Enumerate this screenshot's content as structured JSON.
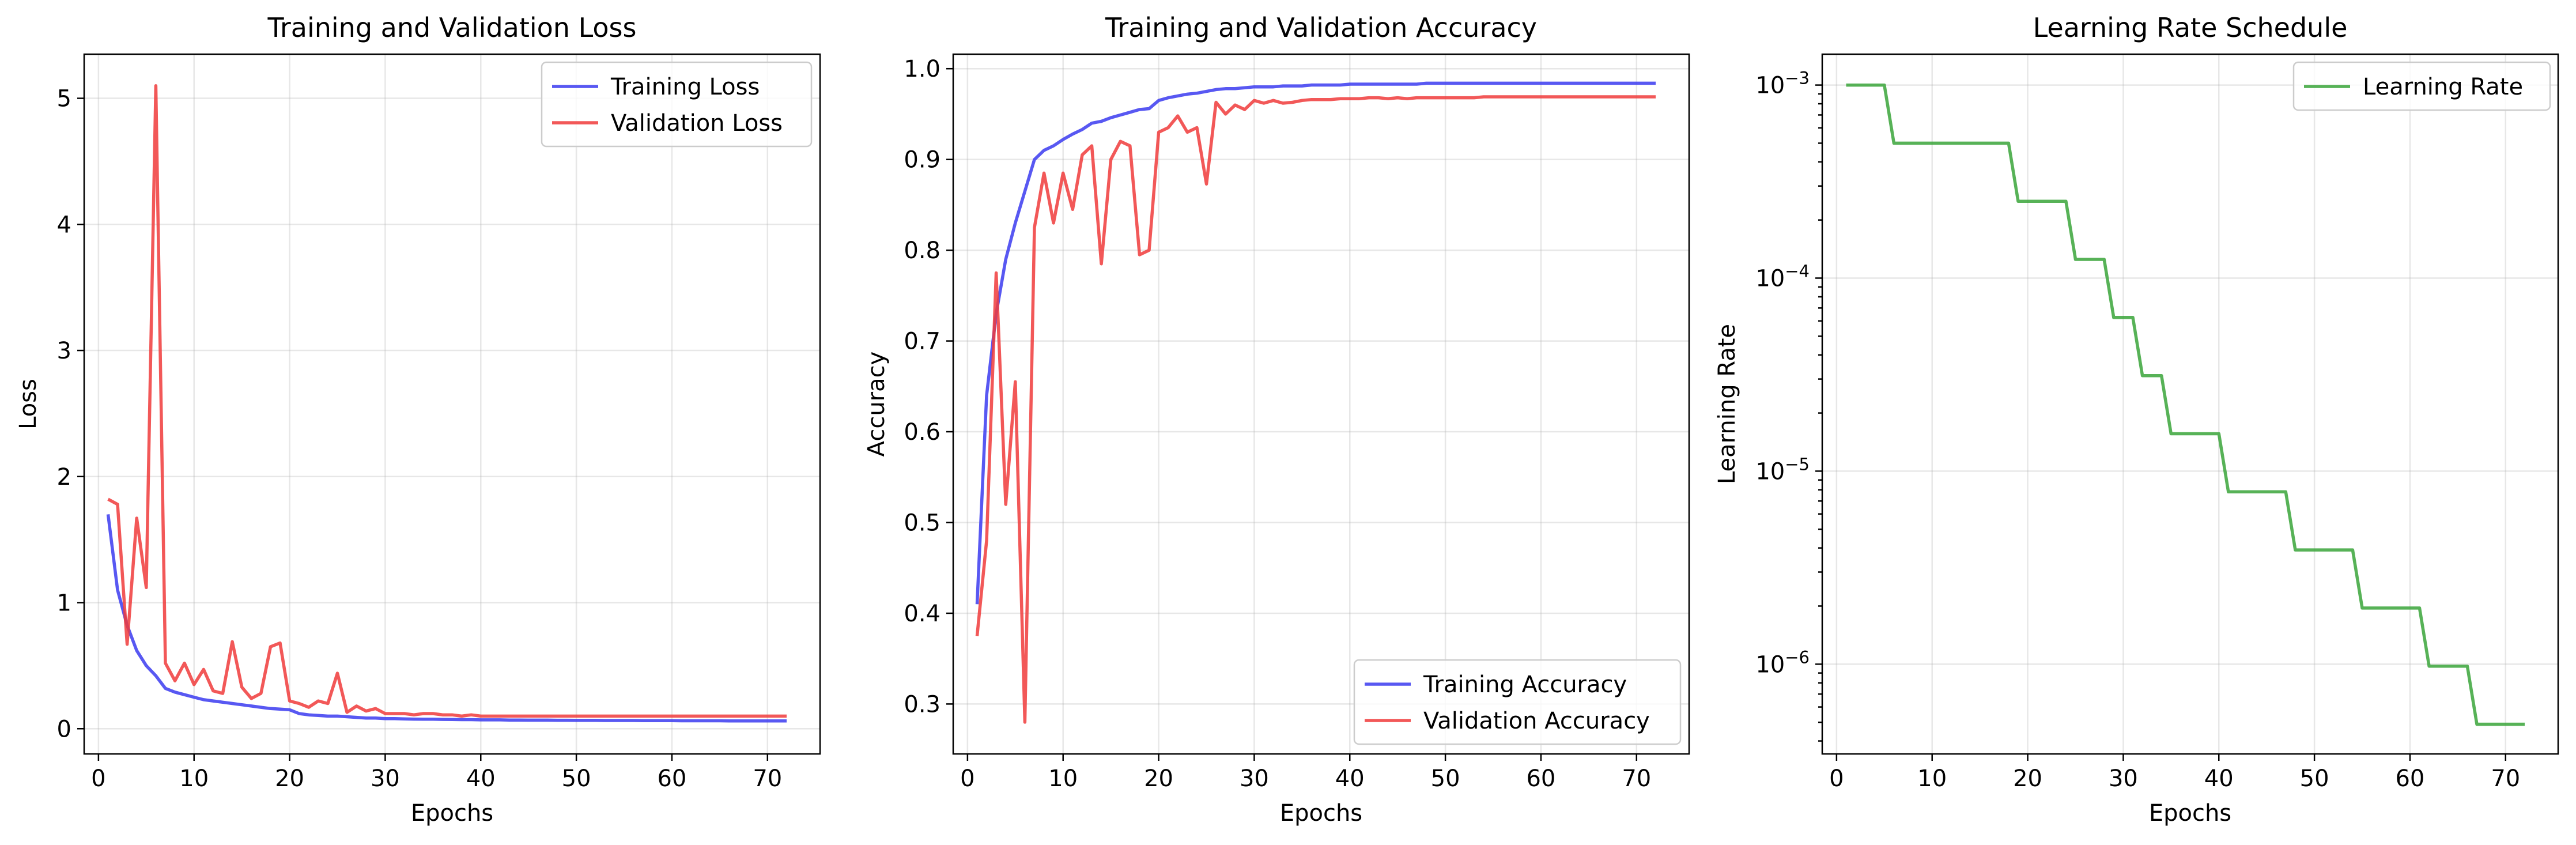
{
  "chart_data": [
    {
      "type": "line",
      "title": "Training and Validation Loss",
      "xlabel": "Epochs",
      "ylabel": "Loss",
      "xlim": [
        -1.5,
        75.5
      ],
      "ylim": [
        -0.2,
        5.35
      ],
      "xticks": [
        0,
        10,
        20,
        30,
        40,
        50,
        60,
        70
      ],
      "yticks": [
        0,
        1,
        2,
        3,
        4,
        5
      ],
      "grid": true,
      "legend_position": "top-right",
      "x": [
        1,
        2,
        3,
        4,
        5,
        6,
        7,
        8,
        9,
        10,
        11,
        12,
        13,
        14,
        15,
        16,
        17,
        18,
        19,
        20,
        21,
        22,
        23,
        24,
        25,
        26,
        27,
        28,
        29,
        30,
        31,
        32,
        33,
        34,
        35,
        36,
        37,
        38,
        39,
        40,
        41,
        42,
        43,
        44,
        45,
        46,
        47,
        48,
        49,
        50,
        51,
        52,
        53,
        54,
        55,
        56,
        57,
        58,
        59,
        60,
        61,
        62,
        63,
        64,
        65,
        66,
        67,
        68,
        69,
        70,
        71,
        72
      ],
      "series": [
        {
          "name": "Training Loss",
          "color": "#3b3bf0",
          "values": [
            1.7,
            1.1,
            0.82,
            0.62,
            0.5,
            0.42,
            0.32,
            0.29,
            0.27,
            0.25,
            0.23,
            0.22,
            0.21,
            0.2,
            0.19,
            0.18,
            0.17,
            0.16,
            0.155,
            0.15,
            0.12,
            0.11,
            0.105,
            0.1,
            0.1,
            0.095,
            0.09,
            0.085,
            0.085,
            0.08,
            0.08,
            0.078,
            0.076,
            0.075,
            0.075,
            0.074,
            0.073,
            0.072,
            0.072,
            0.07,
            0.07,
            0.07,
            0.069,
            0.069,
            0.068,
            0.068,
            0.068,
            0.067,
            0.067,
            0.066,
            0.066,
            0.066,
            0.065,
            0.065,
            0.065,
            0.065,
            0.064,
            0.064,
            0.064,
            0.064,
            0.063,
            0.063,
            0.063,
            0.063,
            0.063,
            0.062,
            0.062,
            0.062,
            0.062,
            0.062,
            0.062,
            0.062
          ]
        },
        {
          "name": "Validation Loss",
          "color": "#f03b3b",
          "values": [
            1.82,
            1.78,
            0.67,
            1.67,
            1.12,
            5.1,
            0.52,
            0.38,
            0.52,
            0.35,
            0.47,
            0.3,
            0.28,
            0.69,
            0.33,
            0.24,
            0.28,
            0.65,
            0.68,
            0.22,
            0.2,
            0.17,
            0.22,
            0.2,
            0.44,
            0.13,
            0.18,
            0.14,
            0.16,
            0.12,
            0.12,
            0.12,
            0.11,
            0.12,
            0.12,
            0.11,
            0.11,
            0.1,
            0.11,
            0.1,
            0.1,
            0.1,
            0.1,
            0.1,
            0.1,
            0.1,
            0.1,
            0.1,
            0.1,
            0.1,
            0.1,
            0.1,
            0.1,
            0.1,
            0.1,
            0.1,
            0.1,
            0.1,
            0.1,
            0.1,
            0.1,
            0.1,
            0.1,
            0.1,
            0.1,
            0.1,
            0.1,
            0.1,
            0.1,
            0.1,
            0.1,
            0.1
          ]
        }
      ]
    },
    {
      "type": "line",
      "title": "Training and Validation Accuracy",
      "xlabel": "Epochs",
      "ylabel": "Accuracy",
      "xlim": [
        -1.5,
        75.5
      ],
      "ylim": [
        0.245,
        1.016
      ],
      "xticks": [
        0,
        10,
        20,
        30,
        40,
        50,
        60,
        70
      ],
      "yticks": [
        0.3,
        0.4,
        0.5,
        0.6,
        0.7,
        0.8,
        0.9,
        1.0
      ],
      "grid": true,
      "legend_position": "bottom-right",
      "x": [
        1,
        2,
        3,
        4,
        5,
        6,
        7,
        8,
        9,
        10,
        11,
        12,
        13,
        14,
        15,
        16,
        17,
        18,
        19,
        20,
        21,
        22,
        23,
        24,
        25,
        26,
        27,
        28,
        29,
        30,
        31,
        32,
        33,
        34,
        35,
        36,
        37,
        38,
        39,
        40,
        41,
        42,
        43,
        44,
        45,
        46,
        47,
        48,
        49,
        50,
        51,
        52,
        53,
        54,
        55,
        56,
        57,
        58,
        59,
        60,
        61,
        62,
        63,
        64,
        65,
        66,
        67,
        68,
        69,
        70,
        71,
        72
      ],
      "series": [
        {
          "name": "Training Accuracy",
          "color": "#3b3bf0",
          "values": [
            0.41,
            0.64,
            0.73,
            0.79,
            0.83,
            0.865,
            0.9,
            0.91,
            0.915,
            0.922,
            0.928,
            0.933,
            0.94,
            0.942,
            0.946,
            0.949,
            0.952,
            0.955,
            0.956,
            0.965,
            0.968,
            0.97,
            0.972,
            0.973,
            0.975,
            0.977,
            0.978,
            0.978,
            0.979,
            0.98,
            0.98,
            0.98,
            0.981,
            0.981,
            0.981,
            0.982,
            0.982,
            0.982,
            0.982,
            0.983,
            0.983,
            0.983,
            0.983,
            0.983,
            0.983,
            0.983,
            0.983,
            0.984,
            0.984,
            0.984,
            0.984,
            0.984,
            0.984,
            0.984,
            0.984,
            0.984,
            0.984,
            0.984,
            0.984,
            0.984,
            0.984,
            0.984,
            0.984,
            0.984,
            0.984,
            0.984,
            0.984,
            0.984,
            0.984,
            0.984,
            0.984,
            0.984
          ]
        },
        {
          "name": "Validation Accuracy",
          "color": "#f03b3b",
          "values": [
            0.375,
            0.48,
            0.775,
            0.52,
            0.655,
            0.28,
            0.825,
            0.885,
            0.83,
            0.885,
            0.845,
            0.905,
            0.915,
            0.785,
            0.9,
            0.92,
            0.915,
            0.795,
            0.8,
            0.93,
            0.935,
            0.948,
            0.93,
            0.935,
            0.873,
            0.963,
            0.95,
            0.96,
            0.955,
            0.965,
            0.962,
            0.965,
            0.962,
            0.963,
            0.965,
            0.966,
            0.966,
            0.966,
            0.967,
            0.967,
            0.967,
            0.968,
            0.968,
            0.967,
            0.968,
            0.967,
            0.968,
            0.968,
            0.968,
            0.968,
            0.968,
            0.968,
            0.968,
            0.969,
            0.969,
            0.969,
            0.969,
            0.969,
            0.969,
            0.969,
            0.969,
            0.969,
            0.969,
            0.969,
            0.969,
            0.969,
            0.969,
            0.969,
            0.969,
            0.969,
            0.969,
            0.969
          ]
        }
      ]
    },
    {
      "type": "line",
      "title": "Learning Rate Schedule",
      "xlabel": "Epochs",
      "ylabel": "Learning Rate",
      "xscale": "linear",
      "yscale": "log",
      "xlim": [
        -1.5,
        75.5
      ],
      "ylim_log10": [
        -6.465,
        -2.84
      ],
      "xticks": [
        0,
        10,
        20,
        30,
        40,
        50,
        60,
        70
      ],
      "ytick_exponents": [
        -3,
        -4,
        -5,
        -6
      ],
      "ytick_labels": [
        "10^-3",
        "10^-4",
        "10^-5",
        "10^-6"
      ],
      "grid": true,
      "legend_position": "top-right",
      "x": [
        1,
        2,
        3,
        4,
        5,
        6,
        7,
        8,
        9,
        10,
        11,
        12,
        13,
        14,
        15,
        16,
        17,
        18,
        19,
        20,
        21,
        22,
        23,
        24,
        25,
        26,
        27,
        28,
        29,
        30,
        31,
        32,
        33,
        34,
        35,
        36,
        37,
        38,
        39,
        40,
        41,
        42,
        43,
        44,
        45,
        46,
        47,
        48,
        49,
        50,
        51,
        52,
        53,
        54,
        55,
        56,
        57,
        58,
        59,
        60,
        61,
        62,
        63,
        64,
        65,
        66,
        67,
        68,
        69,
        70,
        71,
        72
      ],
      "series": [
        {
          "name": "Learning Rate",
          "color": "#3aa53a",
          "values": [
            0.001,
            0.001,
            0.001,
            0.001,
            0.001,
            0.0005,
            0.0005,
            0.0005,
            0.0005,
            0.0005,
            0.0005,
            0.0005,
            0.0005,
            0.0005,
            0.0005,
            0.0005,
            0.0005,
            0.0005,
            0.00025,
            0.00025,
            0.00025,
            0.00025,
            0.00025,
            0.00025,
            0.000125,
            0.000125,
            0.000125,
            0.000125,
            6.25e-05,
            6.25e-05,
            6.25e-05,
            3.125e-05,
            3.125e-05,
            3.125e-05,
            1.5625e-05,
            1.5625e-05,
            1.5625e-05,
            1.5625e-05,
            1.5625e-05,
            1.5625e-05,
            7.8125e-06,
            7.8125e-06,
            7.8125e-06,
            7.8125e-06,
            7.8125e-06,
            7.8125e-06,
            7.8125e-06,
            3.90625e-06,
            3.90625e-06,
            3.90625e-06,
            3.90625e-06,
            3.90625e-06,
            3.90625e-06,
            3.90625e-06,
            1.953125e-06,
            1.953125e-06,
            1.953125e-06,
            1.953125e-06,
            1.953125e-06,
            1.953125e-06,
            1.953125e-06,
            9.765625e-07,
            9.765625e-07,
            9.765625e-07,
            9.765625e-07,
            9.765625e-07,
            4.8828125e-07,
            4.8828125e-07,
            4.8828125e-07,
            4.8828125e-07,
            4.8828125e-07,
            4.8828125e-07
          ]
        }
      ]
    }
  ]
}
